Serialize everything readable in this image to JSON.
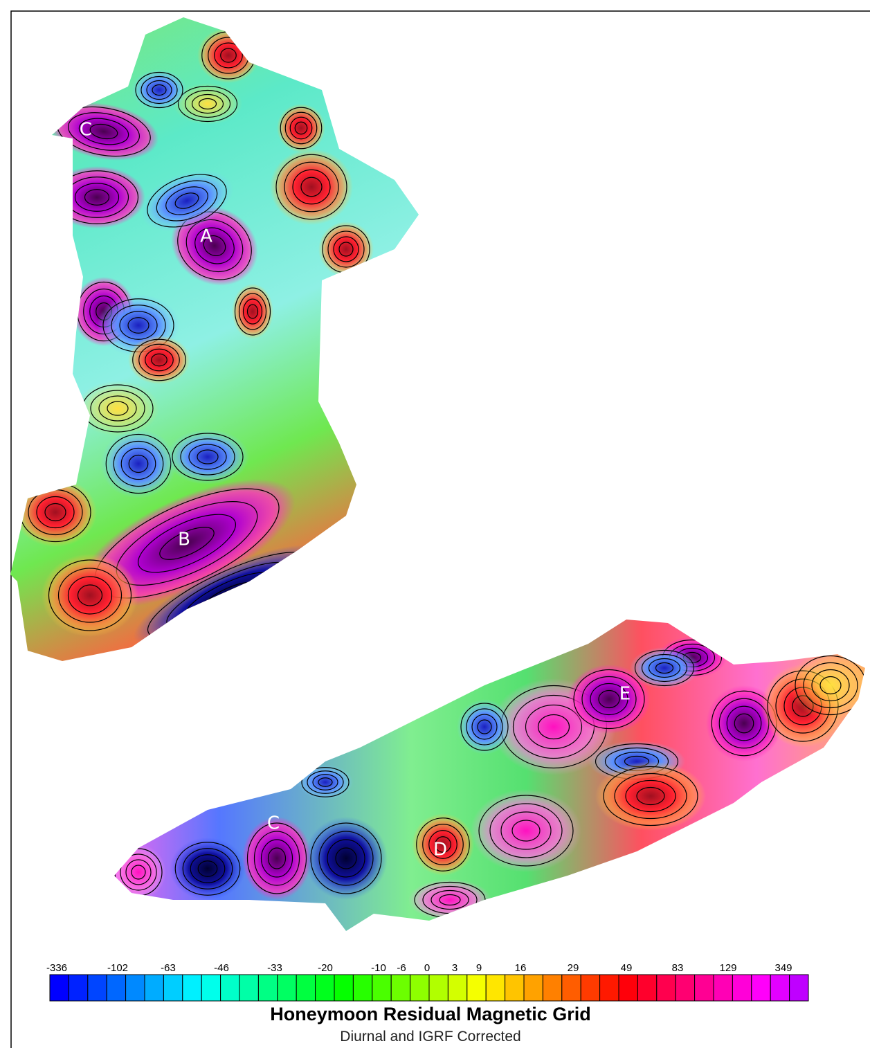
{
  "map": {
    "labels": [
      "A",
      "B",
      "C",
      "C",
      "D",
      "E"
    ]
  },
  "legend": {
    "ticks": [
      -336,
      -102,
      -63,
      -46,
      -33,
      -20,
      -10,
      -6,
      0,
      3,
      9,
      16,
      29,
      49,
      83,
      129,
      349
    ]
  },
  "title": "Honeymoon Residual Magnetic Grid",
  "subtitle": "Diurnal and IGRF Corrected"
}
